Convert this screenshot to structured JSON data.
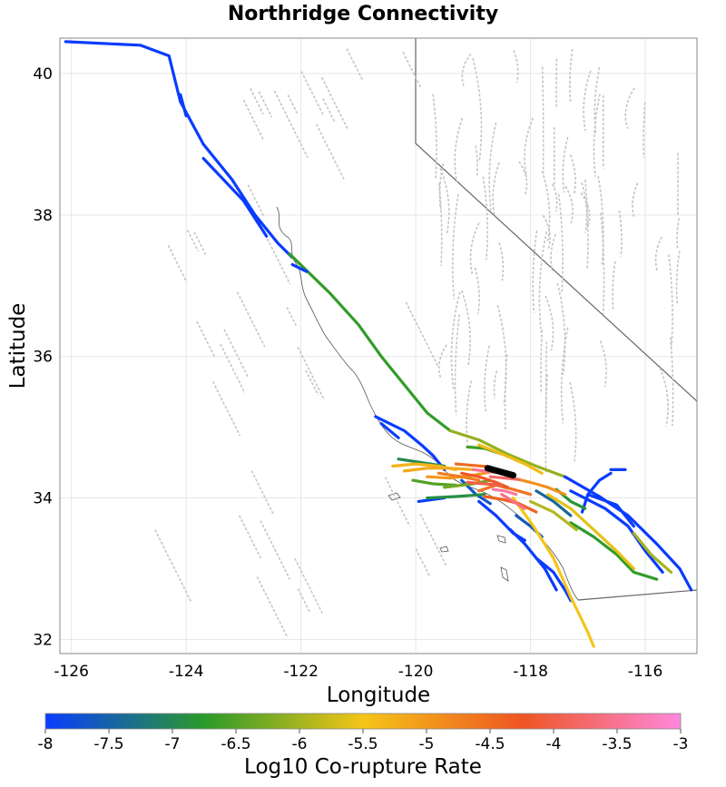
{
  "title": "Northridge Connectivity",
  "axes": {
    "xlabel": "Longitude",
    "ylabel": "Latitude",
    "xlim": [
      -126.2,
      -115.1
    ],
    "ylim": [
      31.8,
      40.5
    ],
    "xticks": [
      -126,
      -124,
      -122,
      -120,
      -118,
      -116
    ],
    "yticks": [
      32,
      34,
      36,
      38,
      40
    ],
    "grid": true
  },
  "colorbar": {
    "label": "Log10 Co-rupture Rate",
    "range": [
      -8,
      -3
    ],
    "ticks": [
      "-8",
      "-7.5",
      "-7",
      "-6.5",
      "-6",
      "-5.5",
      "-5",
      "-4.5",
      "-4",
      "-3.5",
      "-3"
    ],
    "colors": [
      "#0a3cff",
      "#2a9a2a",
      "#f5c518",
      "#ee5522",
      "#ff88dd"
    ]
  },
  "chart_data": {
    "type": "map",
    "description_units": "lon/lat degrees; rate is log10 co-rupture rate",
    "source_fault": {
      "name": "Northridge",
      "points": [
        [
          -118.75,
          34.42
        ],
        [
          -118.3,
          34.32
        ]
      ],
      "color": "#000000"
    },
    "faults": [
      {
        "rate": -8.0,
        "points": [
          [
            -126.1,
            40.45
          ],
          [
            -124.8,
            40.4
          ],
          [
            -124.3,
            40.25
          ],
          [
            -124.1,
            39.6
          ],
          [
            -123.7,
            39.0
          ],
          [
            -123.2,
            38.5
          ],
          [
            -122.8,
            38.0
          ],
          [
            -122.4,
            37.6
          ],
          [
            -122.15,
            37.4
          ]
        ]
      },
      {
        "rate": -6.7,
        "points": [
          [
            -122.2,
            37.45
          ],
          [
            -121.5,
            36.9
          ],
          [
            -121.0,
            36.45
          ],
          [
            -120.6,
            36.0
          ],
          [
            -120.2,
            35.6
          ],
          [
            -119.8,
            35.2
          ],
          [
            -119.4,
            34.95
          ]
        ]
      },
      {
        "rate": -6.1,
        "points": [
          [
            -119.4,
            34.95
          ],
          [
            -118.9,
            34.82
          ],
          [
            -118.4,
            34.62
          ],
          [
            -117.9,
            34.45
          ],
          [
            -117.4,
            34.3
          ]
        ]
      },
      {
        "rate": -8.0,
        "points": [
          [
            -117.4,
            34.3
          ],
          [
            -116.8,
            34.02
          ],
          [
            -116.3,
            33.75
          ],
          [
            -115.8,
            33.35
          ],
          [
            -115.4,
            33.0
          ],
          [
            -115.2,
            32.7
          ]
        ]
      },
      {
        "rate": -8.0,
        "points": [
          [
            -124.1,
            39.7
          ],
          [
            -124.0,
            39.4
          ]
        ]
      },
      {
        "rate": -8.0,
        "points": [
          [
            -123.7,
            38.8
          ],
          [
            -123.0,
            38.2
          ],
          [
            -122.6,
            37.7
          ]
        ]
      },
      {
        "rate": -8.0,
        "points": [
          [
            -122.15,
            37.3
          ],
          [
            -121.9,
            37.2
          ]
        ]
      },
      {
        "rate": -8.0,
        "points": [
          [
            -120.7,
            35.15
          ],
          [
            -120.2,
            34.95
          ],
          [
            -119.9,
            34.75
          ],
          [
            -119.7,
            34.6
          ],
          [
            -119.5,
            34.4
          ]
        ]
      },
      {
        "rate": -8.0,
        "points": [
          [
            -120.6,
            35.05
          ],
          [
            -120.3,
            34.85
          ]
        ]
      },
      {
        "rate": -8.0,
        "points": [
          [
            -118.9,
            33.95
          ],
          [
            -118.6,
            33.75
          ],
          [
            -118.3,
            33.5
          ],
          [
            -118.1,
            33.4
          ]
        ]
      },
      {
        "rate": -8.0,
        "points": [
          [
            -119.95,
            33.95
          ],
          [
            -119.5,
            34.0
          ]
        ]
      },
      {
        "rate": -8.0,
        "points": [
          [
            -117.9,
            33.15
          ],
          [
            -117.6,
            32.95
          ],
          [
            -117.4,
            32.7
          ],
          [
            -117.3,
            32.55
          ]
        ]
      },
      {
        "rate": -8.0,
        "points": [
          [
            -117.3,
            34.1
          ],
          [
            -116.7,
            33.85
          ],
          [
            -116.3,
            33.6
          ],
          [
            -116.0,
            33.25
          ],
          [
            -115.7,
            32.95
          ]
        ]
      },
      {
        "rate": -8.0,
        "points": [
          [
            -117.0,
            34.05
          ],
          [
            -116.5,
            33.9
          ],
          [
            -116.2,
            33.6
          ]
        ]
      },
      {
        "rate": -8.0,
        "points": [
          [
            -116.6,
            34.35
          ],
          [
            -116.8,
            34.25
          ],
          [
            -117.0,
            34.05
          ],
          [
            -117.1,
            33.8
          ]
        ]
      },
      {
        "rate": -8.0,
        "points": [
          [
            -116.6,
            34.4
          ],
          [
            -116.35,
            34.4
          ]
        ]
      },
      {
        "rate": -8.0,
        "points": [
          [
            -118.35,
            33.55
          ],
          [
            -118.1,
            33.35
          ],
          [
            -117.75,
            33.0
          ],
          [
            -117.55,
            32.7
          ]
        ]
      },
      {
        "rate": -7.7,
        "points": [
          [
            -119.2,
            34.25
          ],
          [
            -118.95,
            34.05
          ],
          [
            -118.7,
            33.92
          ]
        ]
      },
      {
        "rate": -7.6,
        "points": [
          [
            -118.25,
            33.75
          ],
          [
            -118.0,
            33.6
          ],
          [
            -117.8,
            33.45
          ]
        ]
      },
      {
        "rate": -7.4,
        "points": [
          [
            -117.9,
            34.1
          ],
          [
            -117.6,
            33.95
          ],
          [
            -117.3,
            33.75
          ]
        ]
      },
      {
        "rate": -7.0,
        "points": [
          [
            -120.3,
            34.55
          ],
          [
            -119.9,
            34.5
          ],
          [
            -119.5,
            34.45
          ]
        ]
      },
      {
        "rate": -6.9,
        "points": [
          [
            -119.8,
            34.0
          ],
          [
            -119.3,
            34.02
          ],
          [
            -118.8,
            34.05
          ]
        ]
      },
      {
        "rate": -6.8,
        "points": [
          [
            -117.55,
            34.12
          ],
          [
            -117.3,
            33.95
          ],
          [
            -117.05,
            33.85
          ]
        ]
      },
      {
        "rate": -6.7,
        "points": [
          [
            -117.3,
            33.65
          ],
          [
            -116.9,
            33.45
          ],
          [
            -116.5,
            33.2
          ],
          [
            -116.2,
            32.95
          ],
          [
            -115.8,
            32.85
          ]
        ]
      },
      {
        "rate": -6.6,
        "points": [
          [
            -119.1,
            34.72
          ],
          [
            -118.8,
            34.7
          ],
          [
            -118.5,
            34.62
          ]
        ]
      },
      {
        "rate": -6.5,
        "points": [
          [
            -120.05,
            34.25
          ],
          [
            -119.7,
            34.2
          ],
          [
            -119.3,
            34.18
          ]
        ]
      },
      {
        "rate": -6.3,
        "points": [
          [
            -119.5,
            34.15
          ],
          [
            -119.0,
            34.2
          ],
          [
            -118.7,
            34.25
          ]
        ]
      },
      {
        "rate": -6.0,
        "points": [
          [
            -116.2,
            33.5
          ],
          [
            -115.9,
            33.2
          ],
          [
            -115.55,
            32.95
          ]
        ]
      },
      {
        "rate": -5.9,
        "points": [
          [
            -118.0,
            33.95
          ],
          [
            -117.6,
            33.8
          ],
          [
            -117.2,
            33.55
          ]
        ]
      },
      {
        "rate": -5.6,
        "points": [
          [
            -117.7,
            34.05
          ],
          [
            -117.3,
            33.85
          ],
          [
            -116.9,
            33.55
          ],
          [
            -116.5,
            33.25
          ],
          [
            -116.2,
            33.0
          ]
        ]
      },
      {
        "rate": -5.5,
        "points": [
          [
            -118.3,
            34.0
          ],
          [
            -117.95,
            33.6
          ],
          [
            -117.6,
            33.15
          ],
          [
            -117.3,
            32.6
          ],
          [
            -117.0,
            32.1
          ],
          [
            -116.9,
            31.9
          ]
        ]
      },
      {
        "rate": -5.4,
        "points": [
          [
            -118.9,
            34.75
          ],
          [
            -118.5,
            34.62
          ],
          [
            -118.1,
            34.48
          ],
          [
            -117.8,
            34.35
          ]
        ]
      },
      {
        "rate": -5.3,
        "points": [
          [
            -120.4,
            34.45
          ],
          [
            -120.0,
            34.48
          ],
          [
            -119.6,
            34.45
          ],
          [
            -119.3,
            34.4
          ]
        ]
      },
      {
        "rate": -5.2,
        "points": [
          [
            -120.2,
            34.38
          ],
          [
            -119.8,
            34.42
          ],
          [
            -119.4,
            34.42
          ],
          [
            -119.0,
            34.4
          ]
        ]
      },
      {
        "rate": -5.0,
        "points": [
          [
            -119.8,
            34.3
          ],
          [
            -119.4,
            34.28
          ],
          [
            -119.0,
            34.32
          ],
          [
            -118.6,
            34.38
          ]
        ]
      },
      {
        "rate": -4.9,
        "points": [
          [
            -118.4,
            34.3
          ],
          [
            -118.0,
            34.22
          ],
          [
            -117.7,
            34.15
          ],
          [
            -117.4,
            34.05
          ]
        ]
      },
      {
        "rate": -4.7,
        "points": [
          [
            -119.6,
            34.35
          ],
          [
            -119.2,
            34.3
          ],
          [
            -118.9,
            34.25
          ]
        ]
      },
      {
        "rate": -4.6,
        "points": [
          [
            -118.9,
            34.1
          ],
          [
            -118.6,
            34.18
          ],
          [
            -118.3,
            34.12
          ],
          [
            -118.0,
            34.05
          ]
        ]
      },
      {
        "rate": -4.5,
        "points": [
          [
            -119.3,
            34.48
          ],
          [
            -119.0,
            34.46
          ],
          [
            -118.7,
            34.44
          ]
        ]
      },
      {
        "rate": -4.4,
        "points": [
          [
            -118.8,
            34.02
          ],
          [
            -118.5,
            33.98
          ],
          [
            -118.2,
            33.92
          ],
          [
            -117.9,
            33.8
          ]
        ]
      },
      {
        "rate": -4.2,
        "points": [
          [
            -119.2,
            34.35
          ],
          [
            -118.9,
            34.3
          ],
          [
            -118.6,
            34.22
          ],
          [
            -118.4,
            34.15
          ]
        ]
      },
      {
        "rate": -4.0,
        "points": [
          [
            -119.1,
            34.22
          ],
          [
            -118.8,
            34.2
          ],
          [
            -118.5,
            34.18
          ]
        ]
      },
      {
        "rate": -3.8,
        "points": [
          [
            -118.7,
            34.3
          ],
          [
            -118.45,
            34.28
          ],
          [
            -118.2,
            34.26
          ]
        ]
      },
      {
        "rate": -3.6,
        "points": [
          [
            -118.5,
            34.05
          ],
          [
            -118.3,
            33.95
          ],
          [
            -118.1,
            33.85
          ]
        ]
      },
      {
        "rate": -3.5,
        "points": [
          [
            -119.0,
            34.4
          ],
          [
            -118.8,
            34.38
          ],
          [
            -118.6,
            34.36
          ]
        ]
      },
      {
        "rate": -3.4,
        "points": [
          [
            -118.65,
            34.12
          ],
          [
            -118.45,
            34.1
          ],
          [
            -118.25,
            34.05
          ]
        ]
      }
    ]
  }
}
